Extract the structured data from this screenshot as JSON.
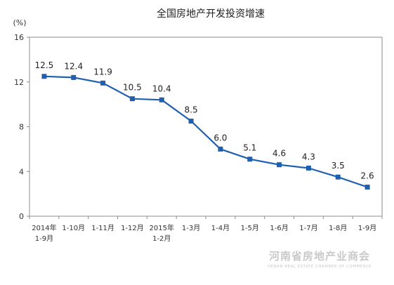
{
  "chart_data": {
    "type": "line",
    "title": "全国房地产开发投资增速",
    "ylabel": "(%)",
    "xlabel": "",
    "ylim": [
      0,
      16
    ],
    "yticks": [
      "0",
      "4",
      "8",
      "12",
      "16"
    ],
    "grid": false,
    "categories": [
      [
        "2014年",
        "1-9月"
      ],
      [
        "1-10月"
      ],
      [
        "1-11月"
      ],
      [
        "1-12月"
      ],
      [
        "2015年",
        "1-2月"
      ],
      [
        "1-3月"
      ],
      [
        "1-4月"
      ],
      [
        "1-5月"
      ],
      [
        "1-6月"
      ],
      [
        "1-7月"
      ],
      [
        "1-8月"
      ],
      [
        "1-9月"
      ]
    ],
    "values": [
      12.5,
      12.4,
      11.9,
      10.5,
      10.4,
      8.5,
      6.0,
      5.1,
      4.6,
      4.3,
      3.5,
      2.6
    ],
    "value_labels": [
      "12.5",
      "12.4",
      "11.9",
      "10.5",
      "10.4",
      "8.5",
      "6.0",
      "5.1",
      "4.6",
      "4.3",
      "3.5",
      "2.6"
    ],
    "line_color": "#1f5fb0",
    "marker": "square"
  },
  "watermark": {
    "name_cn": "河南省房地产业商会",
    "name_en": "HENAN REAL ESTATE CHAMBER OF COMMERCE",
    "color": "#c9c9c9"
  }
}
